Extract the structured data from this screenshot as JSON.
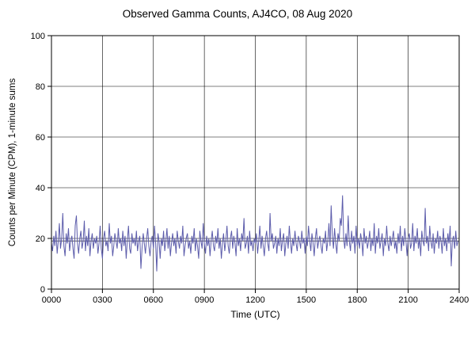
{
  "title": "Observed Gamma Counts, AJ4CO, 08 Aug 2020",
  "chart_data": {
    "type": "line",
    "title": "Observed Gamma Counts, AJ4CO, 08 Aug 2020",
    "xlabel": "Time (UTC)",
    "ylabel": "Counts per Minute (CPM), 1-minute sums",
    "x_tick_labels": [
      "0000",
      "0300",
      "0600",
      "0900",
      "1200",
      "1500",
      "1800",
      "2100",
      "2400"
    ],
    "x_tick_minutes": [
      0,
      180,
      360,
      540,
      720,
      900,
      1080,
      1260,
      1440
    ],
    "y_ticks": [
      0,
      20,
      40,
      60,
      80,
      100
    ],
    "xlim_minutes": [
      0,
      1440
    ],
    "ylim": [
      0,
      100
    ],
    "grid": true,
    "legend_position": "none",
    "line_color": "#5c5cab",
    "mean_line_color": "#555555",
    "mean_line": 19,
    "sample_step_minutes": 4,
    "values": [
      18,
      15,
      21,
      17,
      23,
      14,
      19,
      26,
      16,
      20,
      30,
      17,
      13,
      22,
      18,
      24,
      15,
      19,
      21,
      16,
      12,
      25,
      29,
      18,
      14,
      20,
      23,
      16,
      19,
      27,
      15,
      21,
      17,
      24,
      13,
      19,
      22,
      16,
      20,
      18,
      21,
      14,
      18,
      25,
      16,
      12,
      20,
      23,
      17,
      19,
      15,
      26,
      18,
      21,
      13,
      17,
      22,
      19,
      16,
      24,
      18,
      20,
      15,
      23,
      17,
      21,
      12,
      19,
      25,
      16,
      14,
      22,
      18,
      20,
      17,
      23,
      15,
      19,
      21,
      8,
      16,
      22,
      18,
      14,
      20,
      24,
      17,
      13,
      19,
      21,
      16,
      25,
      18,
      7,
      22,
      19,
      12,
      20,
      17,
      23,
      15,
      19,
      24,
      16,
      21,
      13,
      18,
      22,
      17,
      20,
      14,
      23,
      19,
      16,
      21,
      18,
      25,
      13,
      17,
      20,
      22,
      16,
      19,
      14,
      21,
      18,
      24,
      15,
      20,
      17,
      12,
      23,
      19,
      16,
      26,
      18,
      14,
      21,
      17,
      20,
      13,
      19,
      23,
      17,
      15,
      21,
      18,
      24,
      16,
      20,
      12,
      18,
      22,
      15,
      19,
      25,
      17,
      14,
      20,
      23,
      16,
      21,
      18,
      13,
      24,
      17,
      20,
      15,
      22,
      19,
      28,
      16,
      18,
      21,
      14,
      23,
      17,
      19,
      15,
      20,
      18,
      22,
      14,
      19,
      25,
      16,
      21,
      17,
      13,
      20,
      23,
      18,
      15,
      30,
      19,
      22,
      16,
      18,
      21,
      14,
      20,
      17,
      24,
      15,
      19,
      22,
      13,
      18,
      21,
      16,
      25,
      19,
      14,
      20,
      17,
      23,
      18,
      15,
      21,
      19,
      16,
      23,
      18,
      20,
      14,
      21,
      17,
      25,
      19,
      15,
      22,
      18,
      13,
      20,
      24,
      16,
      19,
      21,
      17,
      14,
      20,
      18,
      23,
      15,
      19,
      26,
      17,
      33,
      21,
      16,
      24,
      18,
      14,
      22,
      19,
      28,
      25,
      37,
      20,
      16,
      22,
      17,
      29,
      19,
      15,
      23,
      18,
      21,
      14,
      25,
      17,
      20,
      16,
      22,
      19,
      13,
      24,
      18,
      21,
      16,
      19,
      23,
      15,
      20,
      17,
      26,
      14,
      21,
      18,
      24,
      16,
      19,
      22,
      13,
      20,
      17,
      25,
      18,
      15,
      21,
      17,
      20,
      23,
      16,
      19,
      14,
      22,
      18,
      25,
      15,
      21,
      17,
      24,
      19,
      13,
      20,
      22,
      16,
      18,
      26,
      15,
      21,
      18,
      24,
      16,
      20,
      13,
      23,
      19,
      17,
      32,
      18,
      21,
      15,
      25,
      19,
      16,
      22,
      14,
      20,
      18,
      23,
      16,
      21,
      19,
      14,
      24,
      17,
      20,
      15,
      22,
      18,
      25,
      9,
      19,
      21,
      16,
      23,
      17,
      19
    ]
  }
}
